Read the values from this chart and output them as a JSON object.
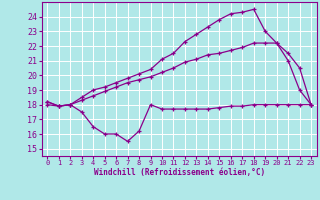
{
  "background_color": "#b0e8e8",
  "grid_color": "#ffffff",
  "line_color": "#8b008b",
  "xlabel": "Windchill (Refroidissement éolien,°C)",
  "ylim": [
    14.5,
    25.0
  ],
  "xlim": [
    -0.5,
    23.5
  ],
  "yticks": [
    15,
    16,
    17,
    18,
    19,
    20,
    21,
    22,
    23,
    24
  ],
  "xticks": [
    0,
    1,
    2,
    3,
    4,
    5,
    6,
    7,
    8,
    9,
    10,
    11,
    12,
    13,
    14,
    15,
    16,
    17,
    18,
    19,
    20,
    21,
    22,
    23
  ],
  "series1_x": [
    0,
    1,
    2,
    3,
    4,
    5,
    6,
    7,
    8,
    9,
    10,
    11,
    12,
    13,
    14,
    15,
    16,
    17,
    18,
    19,
    20,
    21,
    22,
    23
  ],
  "series1_y": [
    18.0,
    17.9,
    18.0,
    17.5,
    16.5,
    16.0,
    16.0,
    15.5,
    16.2,
    18.0,
    17.7,
    17.7,
    17.7,
    17.7,
    17.7,
    17.8,
    17.9,
    17.9,
    18.0,
    18.0,
    18.0,
    18.0,
    18.0,
    18.0
  ],
  "series2_x": [
    0,
    1,
    2,
    3,
    4,
    5,
    6,
    7,
    8,
    9,
    10,
    11,
    12,
    13,
    14,
    15,
    16,
    17,
    18,
    19,
    20,
    21,
    22,
    23
  ],
  "series2_y": [
    18.2,
    17.9,
    18.0,
    18.5,
    19.0,
    19.2,
    19.5,
    19.8,
    20.1,
    20.4,
    21.1,
    21.5,
    22.3,
    22.8,
    23.3,
    23.8,
    24.2,
    24.3,
    24.5,
    23.0,
    22.2,
    21.0,
    19.0,
    18.0
  ],
  "series3_x": [
    0,
    1,
    2,
    3,
    4,
    5,
    6,
    7,
    8,
    9,
    10,
    11,
    12,
    13,
    14,
    15,
    16,
    17,
    18,
    19,
    20,
    21,
    22,
    23
  ],
  "series3_y": [
    18.2,
    17.9,
    18.0,
    18.3,
    18.6,
    18.9,
    19.2,
    19.5,
    19.7,
    19.9,
    20.2,
    20.5,
    20.9,
    21.1,
    21.4,
    21.5,
    21.7,
    21.9,
    22.2,
    22.2,
    22.2,
    21.5,
    20.5,
    18.0
  ]
}
